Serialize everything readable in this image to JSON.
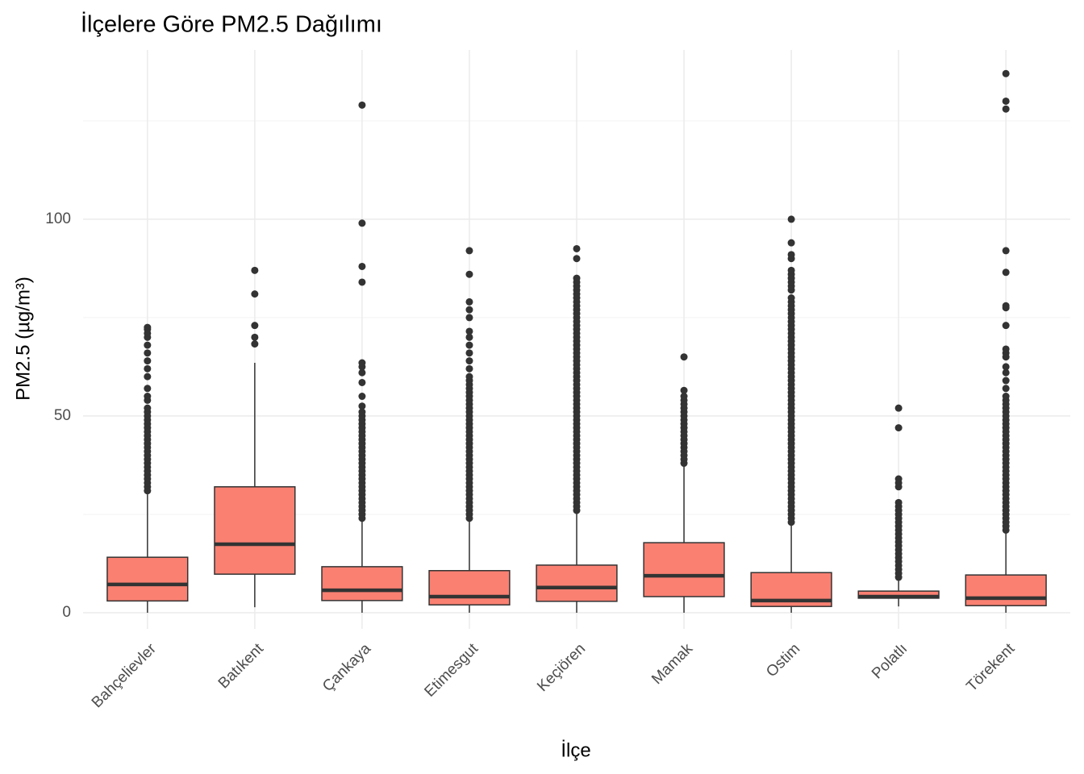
{
  "chart_data": {
    "type": "boxplot",
    "title": "İlçelere Göre PM2.5 Dağılımı",
    "x_label": "İlçe",
    "y_label": "PM2.5 (µg/m³)",
    "categories": [
      "Bahçelievler",
      "Batıkent",
      "Çankaya",
      "Etimesgut",
      "Keçiören",
      "Mamak",
      "Ostim",
      "Polatlı",
      "Törekent"
    ],
    "fill": "#fa8072",
    "stroke": "#333333",
    "grid": true,
    "ylim": [
      -4.1,
      143
    ],
    "yticks": [
      0,
      50,
      100
    ],
    "yminor": [
      25,
      75,
      125
    ],
    "boxes": [
      {
        "low": 0,
        "q1": 3,
        "median": 7.2,
        "q3": 14.1,
        "high": 30.1,
        "outliers": [
          31,
          32,
          33,
          34,
          35,
          36,
          37,
          38,
          39,
          40,
          41,
          42,
          43,
          44,
          45,
          46,
          47,
          48,
          49,
          50,
          51,
          52,
          54,
          55,
          57,
          60,
          62,
          64,
          66,
          68,
          70,
          71,
          72,
          72.5
        ]
      },
      {
        "low": 1.4,
        "q1": 9.8,
        "median": 17.4,
        "q3": 32,
        "high": 63.5,
        "outliers": [
          68.3,
          70,
          73,
          81,
          87
        ]
      },
      {
        "low": 0,
        "q1": 3.1,
        "median": 5.7,
        "q3": 11.7,
        "high": 23.6,
        "outliers": [
          24,
          25,
          26,
          27,
          28,
          29,
          30,
          31,
          32,
          33,
          34,
          35,
          36,
          37,
          38,
          39,
          40,
          41,
          42,
          43,
          44,
          45,
          46,
          47,
          48,
          49,
          50,
          51,
          52.5,
          55,
          58.5,
          61,
          62.5,
          63.5,
          84,
          88,
          99,
          129
        ]
      },
      {
        "low": 0,
        "q1": 2,
        "median": 4.1,
        "q3": 10.7,
        "high": 23.6,
        "outliers": [
          24,
          25,
          26,
          27,
          28,
          29,
          30,
          31,
          32,
          33,
          34,
          35,
          36,
          37,
          38,
          39,
          40,
          41,
          42,
          43,
          44,
          45,
          46,
          47,
          48,
          49,
          50,
          51,
          52,
          53,
          54,
          55,
          56,
          57,
          58,
          59,
          60,
          62,
          64,
          66,
          68,
          70,
          71.5,
          75,
          77,
          79,
          86,
          92
        ]
      },
      {
        "low": 0,
        "q1": 2.9,
        "median": 6.4,
        "q3": 12.1,
        "high": 25.4,
        "outliers": [
          26,
          27,
          28,
          29,
          30,
          31,
          32,
          33,
          34,
          35,
          36,
          37,
          38,
          39,
          40,
          41,
          42,
          43,
          44,
          45,
          46,
          47,
          48,
          49,
          50,
          51,
          52,
          53,
          54,
          55,
          56,
          57,
          58,
          59,
          60,
          61,
          62,
          63,
          64,
          65,
          66,
          67,
          68,
          69,
          70,
          71,
          72,
          73,
          74,
          75,
          76,
          77,
          78,
          79,
          80,
          81,
          82,
          83,
          84,
          85,
          90,
          92.5
        ]
      },
      {
        "low": 0,
        "q1": 4.1,
        "median": 9.4,
        "q3": 17.8,
        "high": 37.3,
        "outliers": [
          38,
          39,
          40,
          41,
          42,
          43,
          44,
          45,
          46,
          47,
          48,
          49,
          50,
          51,
          52,
          53,
          54,
          55,
          56.5,
          65
        ]
      },
      {
        "low": 0,
        "q1": 1.6,
        "median": 3.1,
        "q3": 10.2,
        "high": 22.5,
        "outliers": [
          23,
          24,
          25,
          26,
          27,
          28,
          29,
          30,
          31,
          32,
          33,
          34,
          35,
          36,
          37,
          38,
          39,
          40,
          41,
          42,
          43,
          44,
          45,
          46,
          47,
          48,
          49,
          50,
          51,
          52,
          53,
          54,
          55,
          56,
          57,
          58,
          59,
          60,
          61,
          62,
          63,
          64,
          65,
          66,
          67,
          68,
          69,
          70,
          71,
          72,
          73,
          74,
          75,
          76,
          77,
          78,
          79,
          80,
          82,
          83,
          84,
          85,
          86,
          87,
          90,
          91,
          94,
          100
        ]
      },
      {
        "low": 1.6,
        "q1": 3.7,
        "median": 4.1,
        "q3": 5.5,
        "high": 8.6,
        "outliers": [
          9,
          10,
          11,
          12,
          13,
          14,
          15,
          16,
          17,
          18,
          19,
          20,
          21,
          22,
          23,
          24,
          25,
          26,
          27,
          28,
          32,
          33,
          34,
          47,
          52
        ]
      },
      {
        "low": 0,
        "q1": 1.8,
        "median": 3.7,
        "q3": 9.6,
        "high": 20.9,
        "outliers": [
          21,
          22,
          23,
          24,
          25,
          26,
          27,
          28,
          29,
          30,
          31,
          32,
          33,
          34,
          35,
          36,
          37,
          38,
          39,
          40,
          41,
          42,
          43,
          44,
          45,
          46,
          47,
          48,
          49,
          50,
          51,
          52,
          53,
          54,
          55,
          57,
          59,
          61,
          62.5,
          65,
          66,
          67,
          73,
          77.5,
          78,
          86.5,
          92,
          128,
          130,
          137
        ]
      }
    ]
  }
}
